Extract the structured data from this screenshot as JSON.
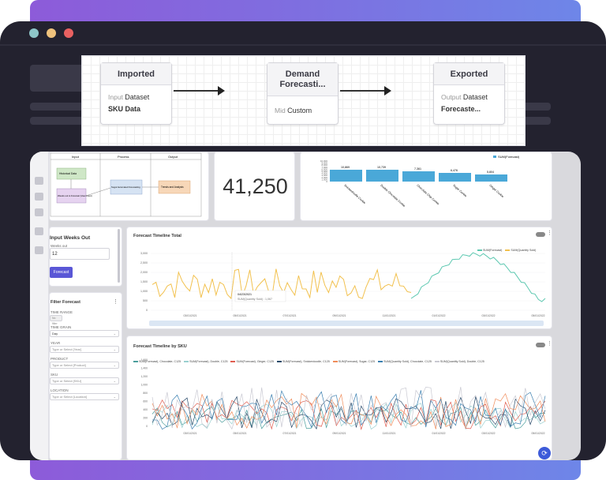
{
  "flow": {
    "nodes": [
      {
        "title": "Imported",
        "sub_label": "Input",
        "sub_value": "Dataset",
        "detail": "SKU Data"
      },
      {
        "title": "Demand Forecasti...",
        "sub_label": "Mid",
        "sub_value": "Custom",
        "detail": ""
      },
      {
        "title": "Exported",
        "sub_label": "Output",
        "sub_value": "Dataset",
        "detail": "Forecaste..."
      }
    ]
  },
  "process_diagram": {
    "headers": [
      "Input",
      "Process",
      "Output"
    ],
    "boxes": [
      "Historical Data",
      "Weeks out to Forecast (User-Input)",
      "Sogui Automated Forecasting",
      "Trends and Analysis"
    ]
  },
  "kpi": {
    "value": "41,250"
  },
  "sku_chart": {
    "legend": "SUM(Forecast)",
    "tick_labels": [
      "10,000",
      "9,000",
      "8,000",
      "7,000",
      "6,000",
      "5,000",
      "4,000",
      "3,000",
      "2,000",
      "1,000",
      "0"
    ],
    "color": "#4aa8d8"
  },
  "filters": {
    "weeks_title": "Input Weeks Out",
    "weeks_label": "Weeks out",
    "weeks_value": "12",
    "forecast_button": "Forecast",
    "filter_title": "Filter Forecast",
    "time_range_label": "TIME RANGE",
    "time_range_value": "No filter",
    "grain_label": "TIME GRAIN",
    "grain_value": "Day",
    "year_label": "YEAR",
    "year_placeholder": "Type or Select [Year]",
    "product_label": "PRODUCT",
    "product_placeholder": "Type or Select [Product]",
    "sku_label": "SKU",
    "sku_placeholder": "Type or Select [SKU]",
    "location_label": "LOCATION",
    "location_placeholder": "Type or Select [Location]"
  },
  "timeline_total": {
    "title": "Forecast Timeline Total",
    "legend": [
      "SUM(Forecast)",
      "SUM(Quantity Sold)"
    ],
    "y_ticks": [
      "3,000",
      "2,500",
      "2,000",
      "1,500",
      "1,000",
      "500",
      "0"
    ],
    "x_ticks": [
      "03/01/2021",
      "05/01/2021",
      "07/01/2021",
      "09/01/2021",
      "11/01/2021",
      "01/01/2022",
      "03/01/2022",
      "05/01/2022"
    ],
    "tooltip_date": "04/23/2021",
    "tooltip_value": "SUM(Quantity Sold) : 1,067",
    "colors": {
      "forecast": "#5cc8b0",
      "sold": "#f2c14e"
    }
  },
  "timeline_sku": {
    "title": "Forecast Timeline by SKU",
    "legend": [
      "SUM(Forecast), Chocolate, C125",
      "SUM(Forecast), Double, C125",
      "SUM(Forecast), Ginger, C125",
      "SUM(Forecast), Snickerdoodle, C125",
      "SUM(Forecast), Sugar, C125",
      "SUM(Quantity Sold), Chocolate, C125",
      "SUM(Quantity Sold), Double, C125"
    ],
    "y_ticks": [
      "1,600",
      "1,400",
      "1,200",
      "1,000",
      "800",
      "600",
      "400",
      "200",
      "0"
    ],
    "x_ticks": [
      "03/01/2021",
      "05/01/2021",
      "07/01/2021",
      "09/01/2021",
      "11/01/2021",
      "01/01/2022",
      "03/01/2022",
      "05/01/2022"
    ],
    "colors": [
      "#4a9d9c",
      "#9ad0d0",
      "#e05d4f",
      "#2a4a6a",
      "#f08c5a",
      "#3a7fb0",
      "#c9c9d2"
    ]
  }
}
